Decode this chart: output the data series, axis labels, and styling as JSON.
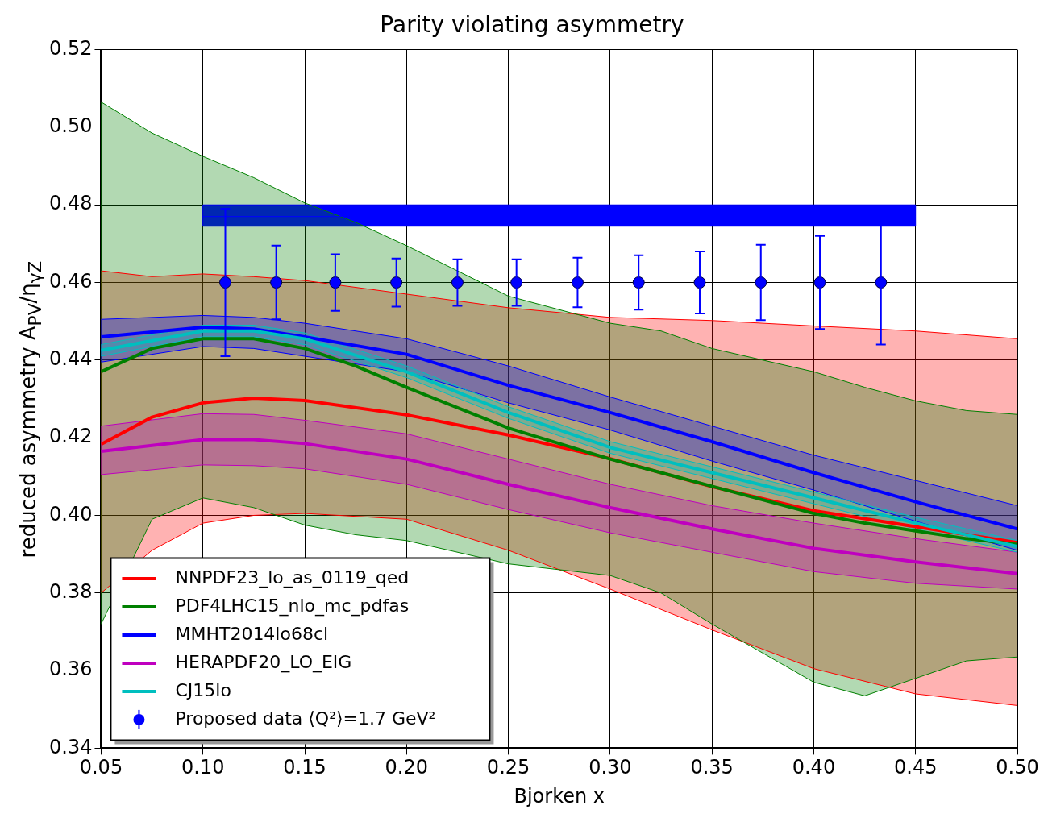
{
  "chart_data": {
    "type": "line",
    "title": "Parity violating asymmetry",
    "xlabel": "Bjorken x",
    "ylabel": "reduced asymmetry  A$_{PV}$/η$_{γZ}$",
    "xlim": [
      0.05,
      0.5
    ],
    "xticks": [
      {
        "value": 0.05,
        "label": "0.05"
      },
      {
        "value": 0.1,
        "label": "0.10"
      },
      {
        "value": 0.15,
        "label": "0.15"
      },
      {
        "value": 0.2,
        "label": "0.20"
      },
      {
        "value": 0.25,
        "label": "0.25"
      },
      {
        "value": 0.3,
        "label": "0.30"
      },
      {
        "value": 0.35,
        "label": "0.35"
      },
      {
        "value": 0.4,
        "label": "0.40"
      },
      {
        "value": 0.45,
        "label": "0.45"
      },
      {
        "value": 0.5,
        "label": "0.50"
      }
    ],
    "ylim": [
      0.34,
      0.52
    ],
    "yticks": [
      {
        "value": 0.34,
        "label": "0.34"
      },
      {
        "value": 0.36,
        "label": "0.36"
      },
      {
        "value": 0.38,
        "label": "0.38"
      },
      {
        "value": 0.4,
        "label": "0.40"
      },
      {
        "value": 0.42,
        "label": "0.42"
      },
      {
        "value": 0.44,
        "label": "0.44"
      },
      {
        "value": 0.46,
        "label": "0.46"
      },
      {
        "value": 0.48,
        "label": "0.48"
      },
      {
        "value": 0.5,
        "label": "0.50"
      },
      {
        "value": 0.52,
        "label": "0.52"
      }
    ],
    "grid": true,
    "legend": "bottom left",
    "series": [
      {
        "type": "line",
        "color": "#0000ff",
        "x": [
          0.1,
          0.45
        ],
        "values": [
          0.477,
          0.477
        ],
        "lower": [
          0.4745,
          0.4745
        ],
        "upper": [
          0.48,
          0.48
        ]
      },
      {
        "name": "NNPDF23_lo_as_0119_qed",
        "type": "line",
        "color": "#ff0000",
        "x": [
          0.05,
          0.075,
          0.1,
          0.125,
          0.15,
          0.2,
          0.25,
          0.3,
          0.35,
          0.4,
          0.45,
          0.5
        ],
        "values": [
          0.4183,
          0.4253,
          0.429,
          0.4302,
          0.4296,
          0.4259,
          0.4207,
          0.4146,
          0.4074,
          0.4012,
          0.3971,
          0.393
        ],
        "lower": [
          0.38,
          0.391,
          0.398,
          0.4,
          0.4005,
          0.399,
          0.391,
          0.381,
          0.3705,
          0.3605,
          0.354,
          0.351
        ],
        "upper": [
          0.463,
          0.4615,
          0.4622,
          0.4615,
          0.4605,
          0.457,
          0.4535,
          0.451,
          0.4502,
          0.4488,
          0.4475,
          0.4455
        ]
      },
      {
        "name": "PDF4LHC15_nlo_mc_pdfas",
        "type": "line",
        "color": "#008000",
        "x": [
          0.05,
          0.075,
          0.1,
          0.125,
          0.15,
          0.175,
          0.2,
          0.25,
          0.3,
          0.325,
          0.35,
          0.4,
          0.425,
          0.45,
          0.475,
          0.5
        ],
        "values": [
          0.437,
          0.443,
          0.4455,
          0.4455,
          0.443,
          0.4385,
          0.433,
          0.4225,
          0.4145,
          0.411,
          0.4075,
          0.4005,
          0.398,
          0.396,
          0.394,
          0.3925
        ],
        "lower": [
          0.372,
          0.399,
          0.4045,
          0.402,
          0.3975,
          0.395,
          0.3935,
          0.3875,
          0.3845,
          0.38,
          0.372,
          0.357,
          0.3535,
          0.358,
          0.3625,
          0.3635
        ],
        "upper": [
          0.5065,
          0.4985,
          0.4925,
          0.487,
          0.4805,
          0.4755,
          0.4695,
          0.4565,
          0.4495,
          0.4475,
          0.443,
          0.437,
          0.433,
          0.4295,
          0.427,
          0.426
        ]
      },
      {
        "name": "MMHT2014lo68cl",
        "type": "line",
        "color": "#0000ff",
        "x": [
          0.05,
          0.1,
          0.125,
          0.15,
          0.2,
          0.25,
          0.3,
          0.35,
          0.4,
          0.45,
          0.5
        ],
        "values": [
          0.446,
          0.4485,
          0.448,
          0.446,
          0.4415,
          0.4335,
          0.4265,
          0.419,
          0.411,
          0.4035,
          0.3965
        ],
        "lower": [
          0.4395,
          0.4435,
          0.443,
          0.441,
          0.437,
          0.429,
          0.422,
          0.414,
          0.4065,
          0.3985,
          0.391
        ],
        "upper": [
          0.4505,
          0.4515,
          0.451,
          0.4495,
          0.4455,
          0.4385,
          0.4305,
          0.423,
          0.4155,
          0.409,
          0.4025
        ]
      },
      {
        "name": "HERAPDF20_LO_EIG",
        "type": "line",
        "color": "#bf00bf",
        "x": [
          0.05,
          0.1,
          0.125,
          0.15,
          0.2,
          0.25,
          0.3,
          0.35,
          0.4,
          0.45,
          0.5
        ],
        "values": [
          0.4165,
          0.4195,
          0.4195,
          0.4185,
          0.4145,
          0.408,
          0.402,
          0.3965,
          0.3915,
          0.388,
          0.385
        ],
        "lower": [
          0.4105,
          0.413,
          0.4128,
          0.412,
          0.408,
          0.4015,
          0.3955,
          0.3905,
          0.3855,
          0.3825,
          0.381
        ],
        "upper": [
          0.423,
          0.4262,
          0.426,
          0.4245,
          0.421,
          0.4145,
          0.408,
          0.4025,
          0.398,
          0.394,
          0.3905
        ]
      },
      {
        "name": "CJ15lo",
        "type": "line",
        "color": "#00bfbf",
        "x": [
          0.05,
          0.1,
          0.125,
          0.15,
          0.2,
          0.25,
          0.3,
          0.35,
          0.4,
          0.45,
          0.5
        ],
        "values": [
          0.4425,
          0.4475,
          0.4475,
          0.4455,
          0.437,
          0.4265,
          0.4175,
          0.411,
          0.4045,
          0.398,
          0.392
        ],
        "lower": [
          0.441,
          0.446,
          0.446,
          0.444,
          0.4355,
          0.425,
          0.416,
          0.4095,
          0.403,
          0.3965,
          0.3905
        ],
        "upper": [
          0.444,
          0.449,
          0.449,
          0.447,
          0.4385,
          0.428,
          0.419,
          0.4125,
          0.406,
          0.3995,
          0.3935
        ]
      },
      {
        "name": "Proposed data ⟨Q²⟩=1.7 GeV²",
        "type": "scatter",
        "marker": "circle",
        "color": "#0000ff",
        "x": [
          0.111,
          0.136,
          0.165,
          0.195,
          0.225,
          0.254,
          0.284,
          0.314,
          0.344,
          0.374,
          0.403,
          0.433
        ],
        "values": [
          0.46,
          0.46,
          0.46,
          0.46,
          0.46,
          0.46,
          0.46,
          0.46,
          0.46,
          0.46,
          0.46,
          0.46
        ],
        "errors": [
          0.019,
          0.0095,
          0.0073,
          0.0062,
          0.006,
          0.006,
          0.0064,
          0.007,
          0.008,
          0.0097,
          0.012,
          0.016
        ]
      }
    ]
  }
}
